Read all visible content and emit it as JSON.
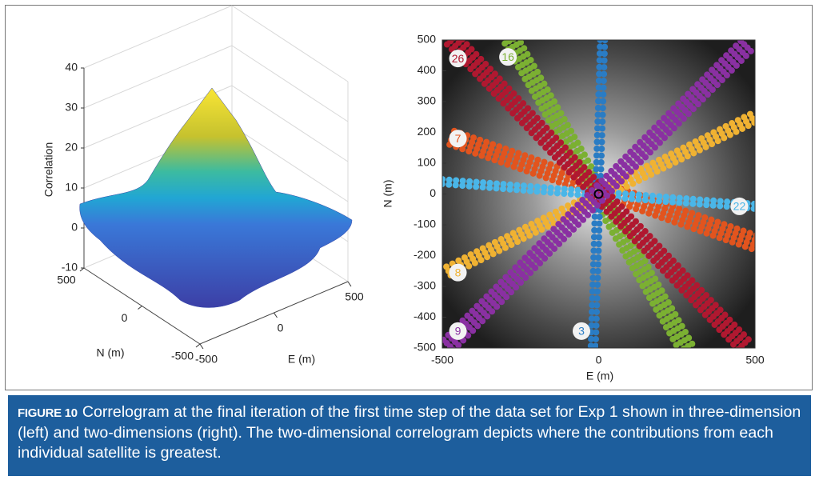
{
  "left_panel": {
    "zlabel": "Correlation",
    "xlabel": "E (m)",
    "ylabel": "N (m)",
    "zticks": [
      -10,
      0,
      10,
      20,
      30,
      40
    ],
    "xticks": [
      -500,
      0,
      500
    ],
    "yticks": [
      -500,
      0,
      500
    ]
  },
  "right_panel": {
    "xlabel": "E (m)",
    "ylabel": "N (m)",
    "xlim": [
      -500,
      500
    ],
    "ylim": [
      -500,
      500
    ],
    "xticks": [
      -500,
      0,
      500
    ],
    "yticks": [
      -500,
      -400,
      -300,
      -200,
      -100,
      0,
      100,
      200,
      300,
      400,
      500
    ],
    "satellites": [
      {
        "label": "26",
        "color": "#b01830"
      },
      {
        "label": "16",
        "color": "#7bb032"
      },
      {
        "label": "3",
        "color": "#2a7cc4"
      },
      {
        "label": "22",
        "color": "#4ab6e8"
      },
      {
        "label": "8",
        "color": "#f0b232"
      },
      {
        "label": "9",
        "color": "#8a30a2"
      },
      {
        "label": "7",
        "color": "#e2541e"
      }
    ]
  },
  "caption": {
    "label": "FIGURE 10",
    "text": "Correlogram at the final iteration of the first time step of the data set for Exp 1 shown in three-dimension (left) and two-dimensions (right). The two-dimensional correlogram depicts where the contributions from each individual satellite is greatest."
  }
}
